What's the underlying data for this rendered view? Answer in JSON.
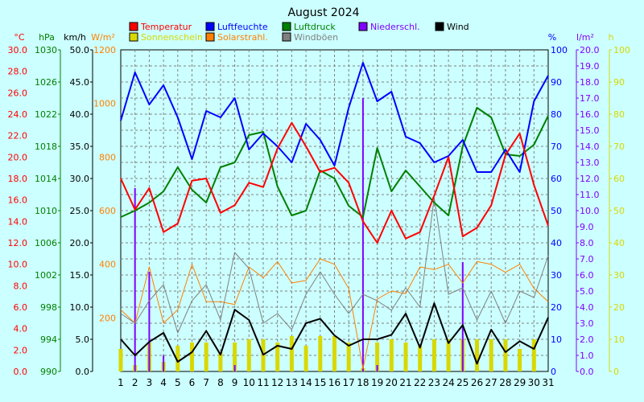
{
  "chart_data": {
    "type": "line",
    "title": "August 2024",
    "x": [
      1,
      2,
      3,
      4,
      5,
      6,
      7,
      8,
      9,
      10,
      11,
      12,
      13,
      14,
      15,
      16,
      17,
      18,
      19,
      20,
      21,
      22,
      23,
      24,
      25,
      26,
      27,
      28,
      29,
      30,
      31
    ],
    "xlim": [
      1,
      31
    ],
    "grid": true,
    "legend": [
      {
        "label": "Temperatur",
        "color": "#ff0000"
      },
      {
        "label": "Luftfeuchte",
        "color": "#0000ff"
      },
      {
        "label": "Luftdruck",
        "color": "#008000"
      },
      {
        "label": "Niederschl.",
        "color": "#8000ff"
      },
      {
        "label": "Wind",
        "color": "#000000"
      },
      {
        "label": "Sonnenschein",
        "color": "#d8d800"
      },
      {
        "label": "Solarstrahl.",
        "color": "#ff8000"
      },
      {
        "label": "Windböen",
        "color": "#808080"
      }
    ],
    "axes": {
      "temp": {
        "unit": "°C",
        "color": "#ff0000",
        "min": 0,
        "max": 30,
        "ticks": [
          "0.0",
          "2.0",
          "4.0",
          "6.0",
          "8.0",
          "10.0",
          "12.0",
          "14.0",
          "16.0",
          "18.0",
          "20.0",
          "22.0",
          "24.0",
          "26.0",
          "28.0",
          "30.0"
        ]
      },
      "press": {
        "unit": "hPa",
        "color": "#008000",
        "min": 990,
        "max": 1030,
        "ticks": [
          "990",
          "994",
          "998",
          "1002",
          "1006",
          "1010",
          "1014",
          "1018",
          "1022",
          "1026",
          "1030"
        ]
      },
      "wind": {
        "unit": "km/h",
        "color": "#000000",
        "min": 0,
        "max": 50,
        "ticks": [
          "0.0",
          "5.0",
          "10.0",
          "15.0",
          "20.0",
          "25.0",
          "30.0",
          "35.0",
          "40.0",
          "45.0",
          "50.0"
        ]
      },
      "solar": {
        "unit": "W/m²",
        "color": "#ff8000",
        "min": 0,
        "max": 1200,
        "ticks": [
          "200",
          "400",
          "600",
          "800",
          "1000",
          "1200"
        ]
      },
      "hum": {
        "unit": "%",
        "color": "#0000ff",
        "min": 0,
        "max": 100,
        "ticks": [
          "0",
          "10",
          "20",
          "30",
          "40",
          "50",
          "60",
          "70",
          "80",
          "90",
          "100"
        ]
      },
      "rain": {
        "unit": "l/m²",
        "color": "#8000ff",
        "min": 0,
        "max": 20,
        "ticks": [
          "0.0",
          "1.0",
          "2.0",
          "3.0",
          "4.0",
          "5.0",
          "6.0",
          "7.0",
          "8.0",
          "9.0",
          "10.0",
          "11.0",
          "12.0",
          "13.0",
          "14.0",
          "15.0",
          "16.0",
          "17.0",
          "18.0",
          "19.0",
          "20.0"
        ]
      },
      "sun": {
        "unit": "h",
        "color": "#d8d800",
        "min": 0,
        "max": 100,
        "ticks": [
          "0",
          "10",
          "20",
          "30",
          "40",
          "50",
          "60",
          "70",
          "80",
          "90",
          "100"
        ]
      }
    },
    "series": [
      {
        "name": "Temperatur",
        "axis": "temp",
        "kind": "line",
        "color": "#ff0000",
        "width": 2,
        "values": [
          18.0,
          15.1,
          17.1,
          13.0,
          13.8,
          17.8,
          18.0,
          14.8,
          15.5,
          17.6,
          17.2,
          20.8,
          23.2,
          21.0,
          18.6,
          19.0,
          17.6,
          14.0,
          12.0,
          15.0,
          12.4,
          13.0,
          16.4,
          20.0,
          12.6,
          13.4,
          15.5,
          20.2,
          22.2,
          17.4,
          13.6
        ]
      },
      {
        "name": "Luftfeuchte",
        "axis": "hum",
        "kind": "line",
        "color": "#0000ff",
        "width": 2,
        "values": [
          78,
          93,
          83,
          89,
          79,
          66,
          81,
          79,
          85,
          69,
          74,
          70,
          65,
          77,
          72,
          64,
          82,
          96,
          84,
          87,
          73,
          71,
          65,
          67,
          72,
          62,
          62,
          69,
          62,
          84,
          92
        ]
      },
      {
        "name": "Luftdruck",
        "axis": "press",
        "kind": "line",
        "color": "#008000",
        "width": 2,
        "values": [
          1009.2,
          1010.0,
          1011.0,
          1012.4,
          1015.4,
          1012.6,
          1011.0,
          1015.4,
          1016.0,
          1019.4,
          1019.8,
          1013.0,
          1009.4,
          1010.0,
          1015.0,
          1014.0,
          1010.6,
          1009.2,
          1017.8,
          1012.4,
          1015.0,
          1013.0,
          1011.0,
          1009.4,
          1018.0,
          1022.8,
          1021.6,
          1017.0,
          1016.8,
          1018.2,
          1021.8
        ]
      },
      {
        "name": "Windböen",
        "axis": "wind",
        "kind": "line",
        "color": "#808080",
        "width": 1,
        "values": [
          9,
          7.5,
          11,
          13.5,
          6,
          11,
          13.5,
          8,
          18.5,
          16,
          7.5,
          9,
          6.5,
          12,
          15.5,
          12,
          9,
          12,
          11,
          9.5,
          13,
          10,
          27,
          12,
          13,
          8,
          12.5,
          7.5,
          12.5,
          11.5,
          18
        ]
      },
      {
        "name": "Solarstrahl.",
        "axis": "solar",
        "kind": "line",
        "color": "#ff8000",
        "width": 1,
        "values": [
          230,
          180,
          390,
          180,
          230,
          400,
          260,
          260,
          250,
          390,
          350,
          410,
          330,
          340,
          420,
          400,
          310,
          10,
          270,
          300,
          290,
          390,
          380,
          400,
          330,
          410,
          400,
          370,
          400,
          310,
          260
        ]
      },
      {
        "name": "Wind",
        "axis": "wind",
        "kind": "line",
        "color": "#000000",
        "width": 2,
        "values": [
          5,
          2.5,
          4.6,
          6,
          1.5,
          3,
          6.3,
          2.6,
          9.6,
          8,
          2.6,
          4,
          3.5,
          7.5,
          8.2,
          5.6,
          4,
          5,
          5,
          5.7,
          9,
          3.7,
          10.6,
          4.4,
          7.2,
          1.2,
          6.5,
          3,
          4.7,
          3.5,
          8.4
        ]
      },
      {
        "name": "Sonnenschein",
        "axis": "sun",
        "kind": "bar",
        "color": "#d8d800",
        "width": 5,
        "values": [
          7,
          2,
          9,
          3,
          8,
          9,
          9,
          6,
          9,
          10,
          10,
          9,
          11,
          8,
          11,
          11,
          9,
          1,
          9,
          10,
          9,
          8,
          10,
          10,
          10,
          10,
          10,
          10,
          7,
          10,
          0
        ]
      },
      {
        "name": "Niederschl.",
        "axis": "rain",
        "kind": "bar",
        "color": "#8000ff",
        "width": 2,
        "values": [
          0,
          11.4,
          6.2,
          1.0,
          0,
          0,
          0,
          0,
          0.4,
          0,
          0,
          0,
          0,
          0,
          0,
          0,
          0,
          17.0,
          0.4,
          0,
          0,
          0,
          0,
          0,
          6.8,
          0,
          0,
          0,
          0,
          0,
          0
        ]
      }
    ]
  }
}
